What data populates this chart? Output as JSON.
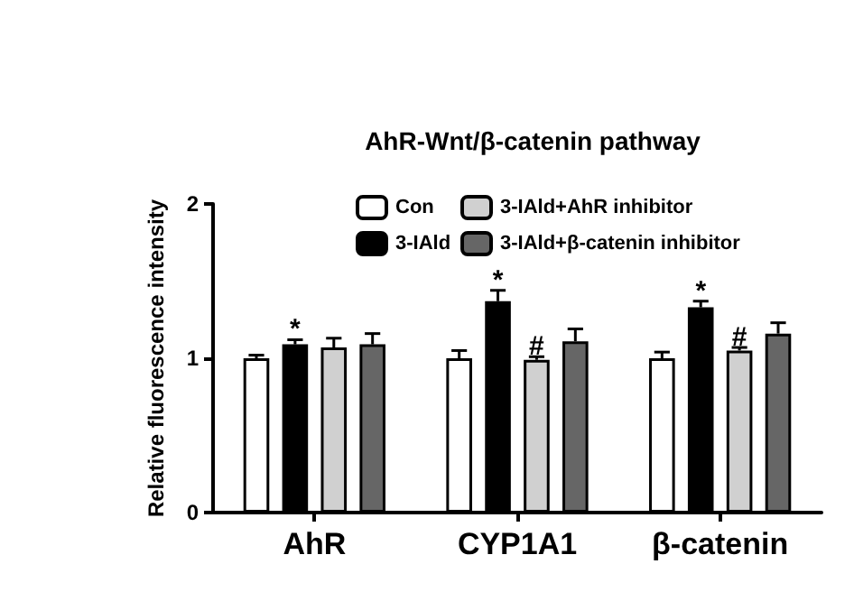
{
  "chart_data": {
    "type": "bar",
    "title": "AhR-Wnt/β-catenin pathway",
    "ylabel": "Relative fluorescence intensity",
    "categories": [
      "AhR",
      "CYP1A1",
      "β-catenin"
    ],
    "series": [
      {
        "name": "Con",
        "color": "#ffffff",
        "values": [
          1.0,
          1.0,
          1.0
        ],
        "errors": [
          0.02,
          0.05,
          0.04
        ]
      },
      {
        "name": "3-IAld",
        "color": "#000000",
        "values": [
          1.09,
          1.37,
          1.33
        ],
        "errors": [
          0.03,
          0.07,
          0.04
        ],
        "value_labels": [
          "*",
          "*",
          "*"
        ]
      },
      {
        "name": "3-IAld+AhR inhibitor",
        "color": "#d0d0d0",
        "values": [
          1.07,
          0.99,
          1.05
        ],
        "errors": [
          0.06,
          0.02,
          0.02
        ],
        "value_labels": [
          null,
          "#",
          "#"
        ]
      },
      {
        "name": "3-IAld+β-catenin inhibitor",
        "color": "#666666",
        "values": [
          1.09,
          1.11,
          1.16
        ],
        "errors": [
          0.07,
          0.08,
          0.07
        ]
      }
    ],
    "ylim": [
      0,
      2
    ],
    "yticks": [
      0,
      1,
      2
    ],
    "grid": false,
    "legend": "top right"
  }
}
